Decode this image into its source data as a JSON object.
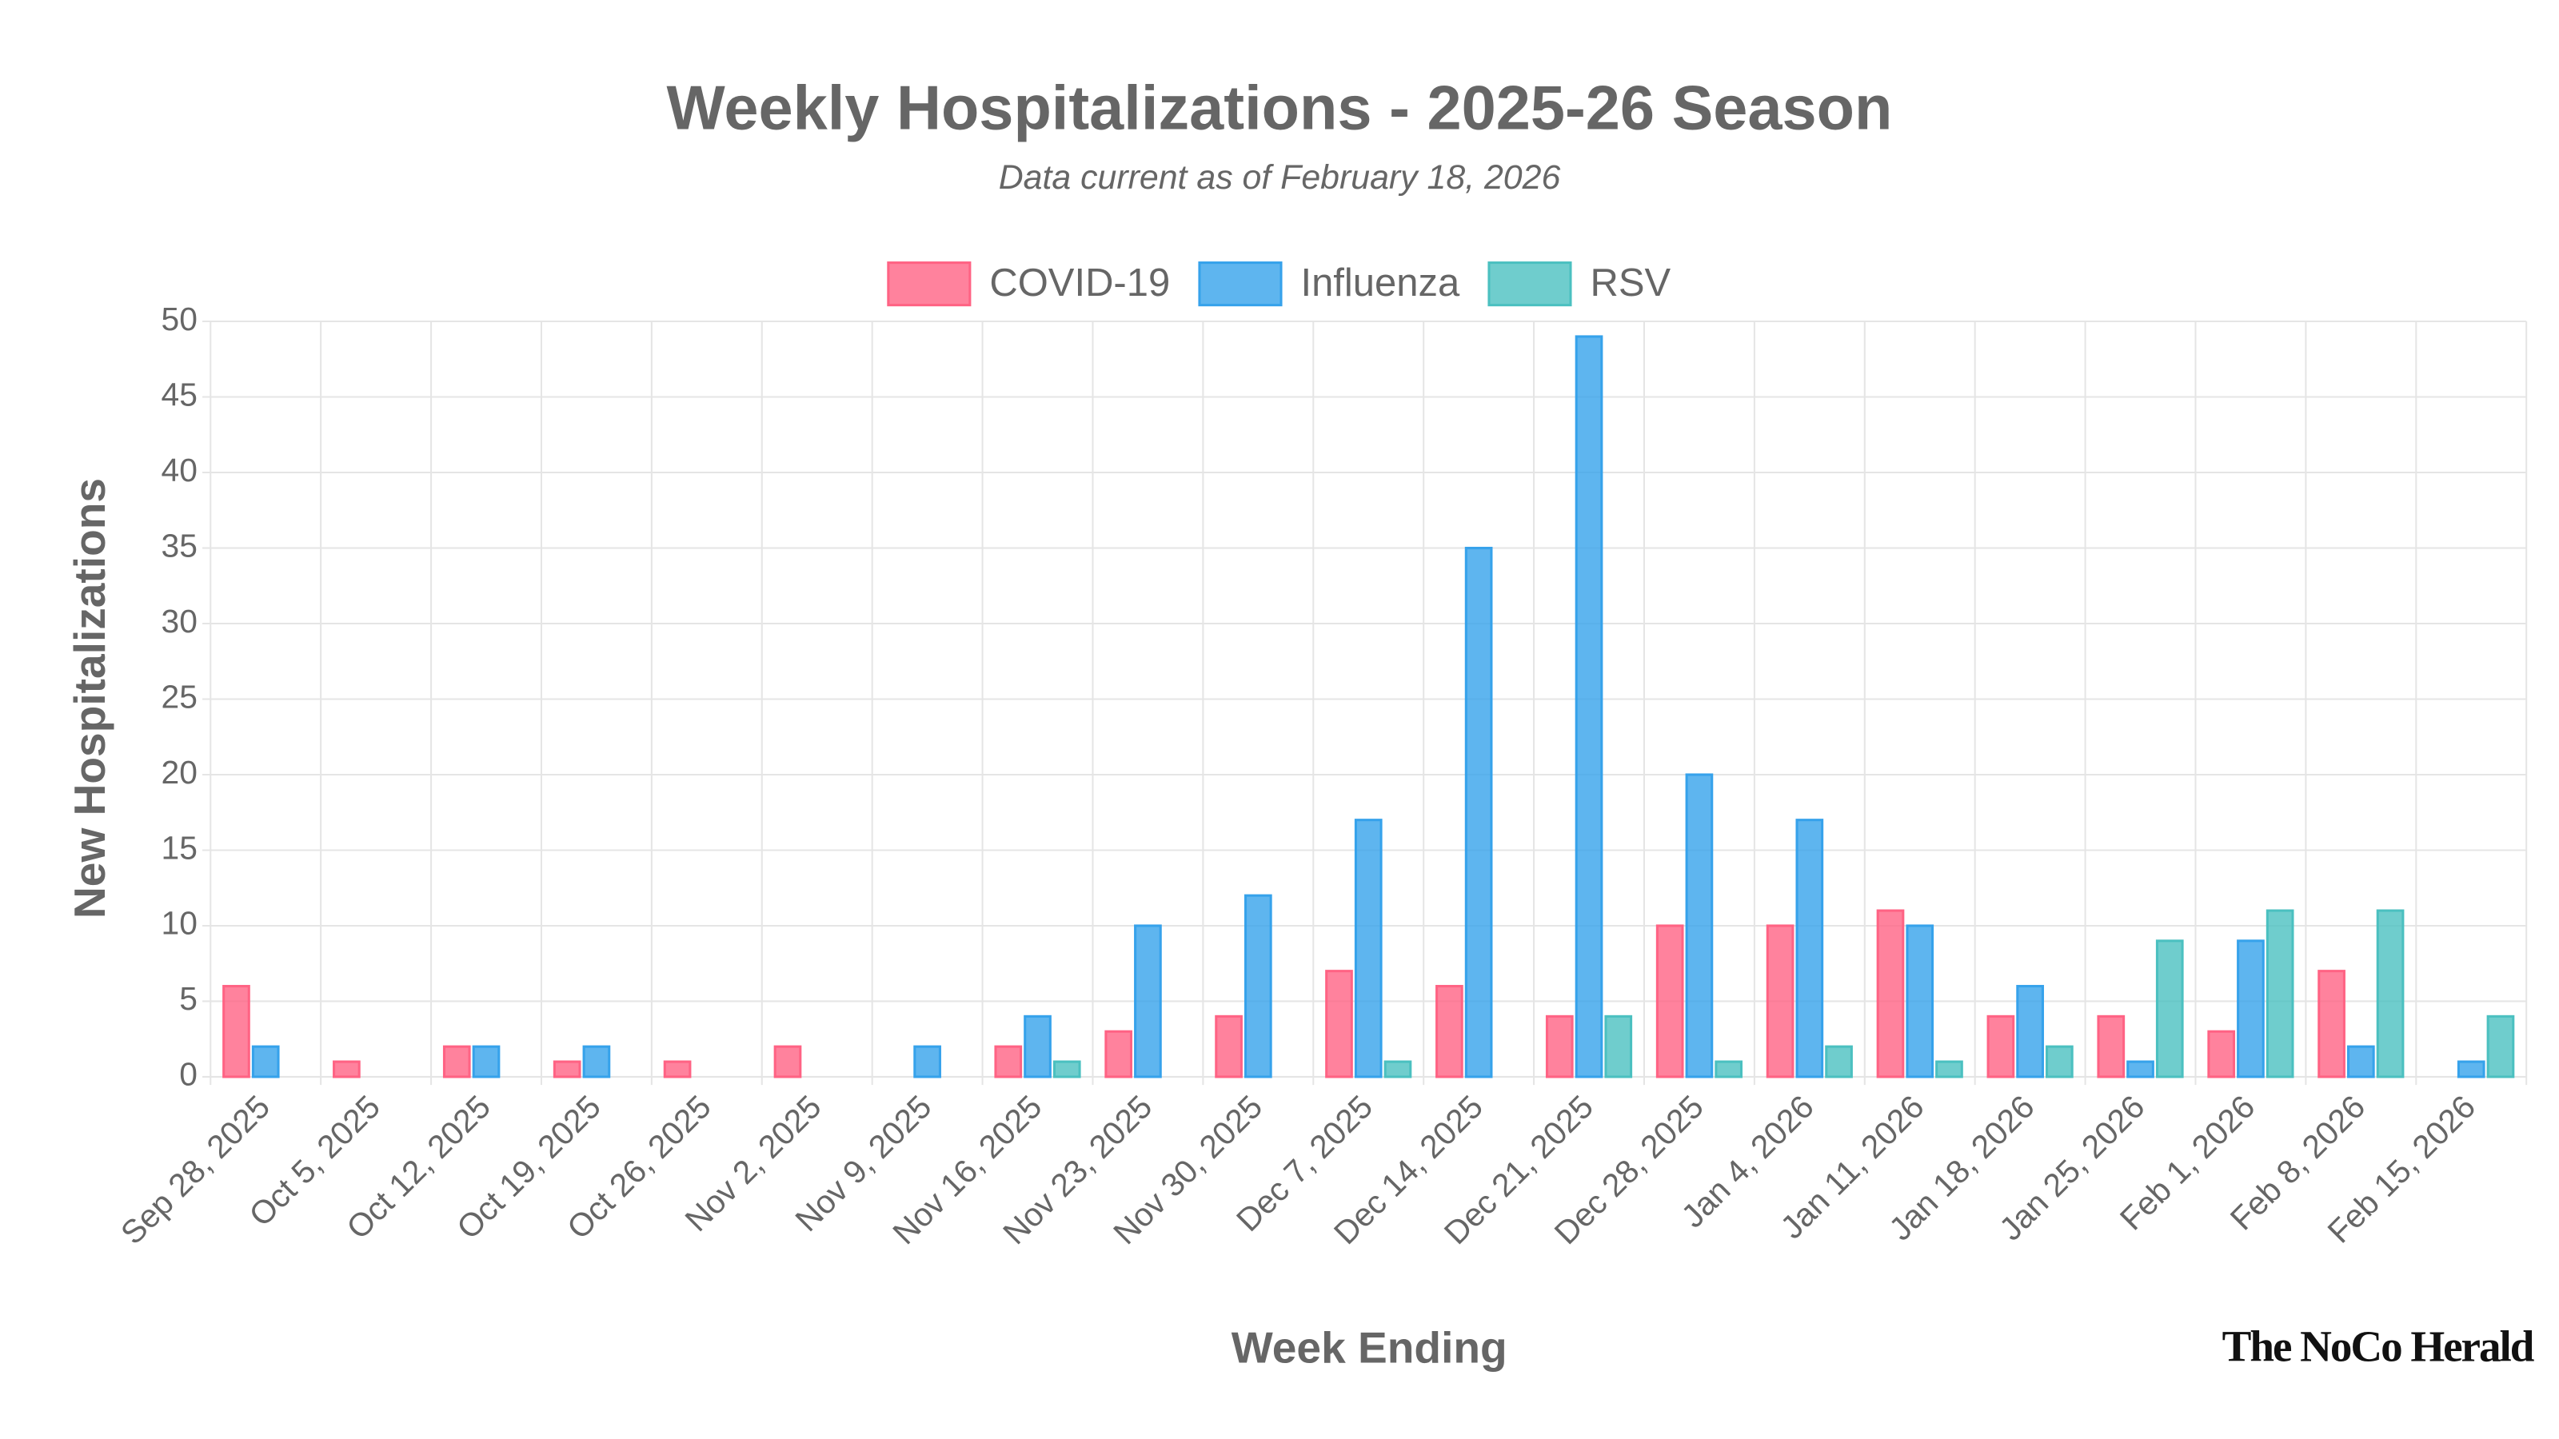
{
  "chart_data": {
    "type": "bar",
    "title": "Weekly Hospitalizations - 2025-26 Season",
    "subtitle": "Data current as of February 18, 2026",
    "x_label": "Week Ending",
    "y_label": "New Hospitalizations",
    "watermark": "The NoCo Herald",
    "categories": [
      "Sep 28, 2025",
      "Oct 5, 2025",
      "Oct 12, 2025",
      "Oct 19, 2025",
      "Oct 26, 2025",
      "Nov 2, 2025",
      "Nov 9, 2025",
      "Nov 16, 2025",
      "Nov 23, 2025",
      "Nov 30, 2025",
      "Dec 7, 2025",
      "Dec 14, 2025",
      "Dec 21, 2025",
      "Dec 28, 2025",
      "Jan 4, 2026",
      "Jan 11, 2026",
      "Jan 18, 2026",
      "Jan 25, 2026",
      "Feb 1, 2026",
      "Feb 8, 2026",
      "Feb 15, 2026"
    ],
    "series": [
      {
        "name": "COVID-19",
        "color": "#ff6384",
        "values": [
          6,
          1,
          2,
          1,
          1,
          2,
          0,
          2,
          3,
          4,
          7,
          6,
          4,
          10,
          10,
          11,
          4,
          4,
          3,
          7,
          0
        ]
      },
      {
        "name": "Influenza",
        "color": "#36a2eb",
        "values": [
          2,
          0,
          2,
          2,
          0,
          0,
          2,
          4,
          10,
          12,
          17,
          35,
          49,
          20,
          17,
          10,
          6,
          1,
          9,
          2,
          1
        ]
      },
      {
        "name": "RSV",
        "color": "#4bc0c0",
        "values": [
          0,
          0,
          0,
          0,
          0,
          0,
          0,
          1,
          0,
          0,
          1,
          0,
          4,
          1,
          2,
          1,
          2,
          9,
          11,
          11,
          4
        ]
      }
    ],
    "ylim": [
      0,
      50
    ],
    "yticks": [
      0,
      5,
      10,
      15,
      20,
      25,
      30,
      35,
      40,
      45,
      50
    ],
    "grid": true,
    "legend": "top"
  }
}
